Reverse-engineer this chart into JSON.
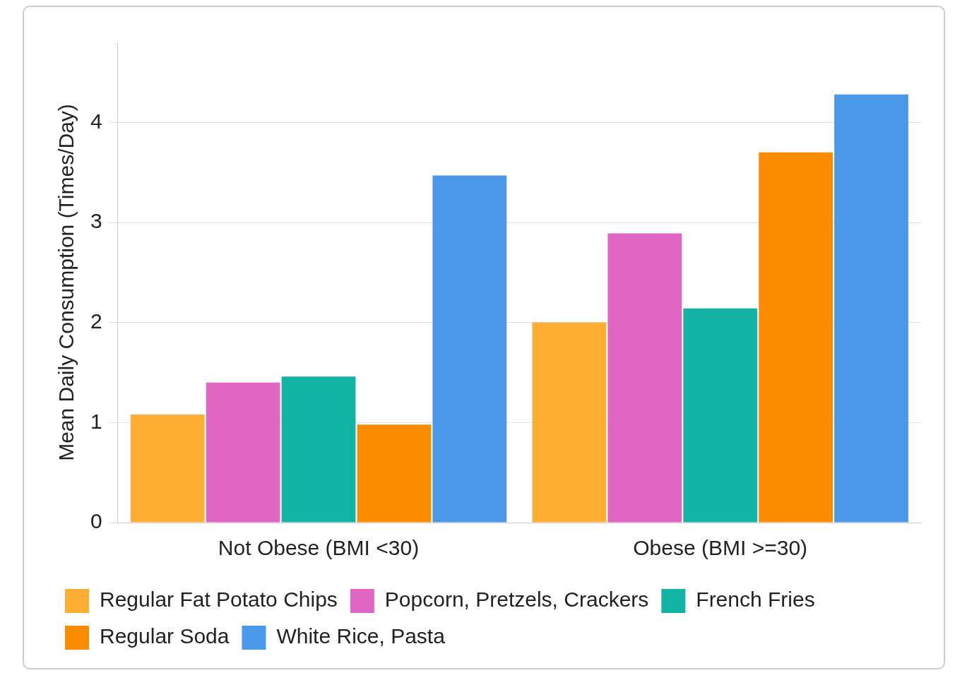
{
  "chart_data": {
    "type": "bar",
    "ylabel": "Mean Daily Consumption (Times/Day)",
    "categories": [
      "Not Obese (BMI <30)",
      "Obese (BMI >=30)"
    ],
    "series": [
      {
        "name": "Regular Fat Potato Chips",
        "color": "#ffad33",
        "values": [
          1.08,
          2.0
        ]
      },
      {
        "name": "Popcorn, Pretzels, Crackers",
        "color": "#e066c4",
        "values": [
          1.4,
          2.89
        ]
      },
      {
        "name": "French Fries",
        "color": "#13b3a3",
        "values": [
          1.46,
          2.14
        ]
      },
      {
        "name": "Regular Soda",
        "color": "#fb8c00",
        "values": [
          0.98,
          3.7
        ]
      },
      {
        "name": "White Rice, Pasta",
        "color": "#4a98e8",
        "values": [
          3.47,
          4.28
        ]
      }
    ],
    "ylim": [
      0,
      4.8
    ],
    "yticks": [
      0,
      1,
      2,
      3,
      4
    ],
    "grid": "y",
    "legend": "bottom"
  }
}
